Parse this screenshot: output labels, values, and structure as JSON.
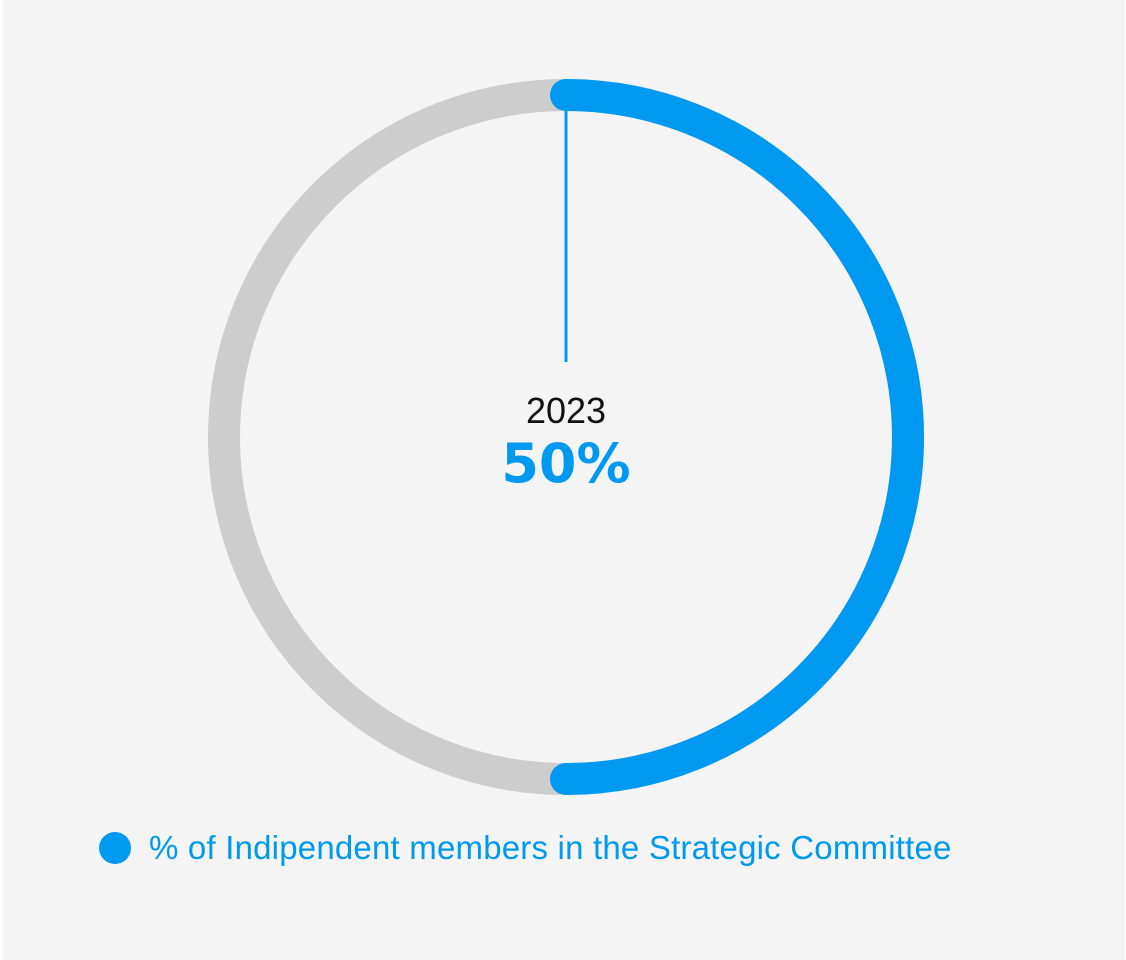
{
  "colors": {
    "accent": "#0099f2",
    "track": "#cdcdcd",
    "background": "#f4f4f4",
    "year_text": "#111111"
  },
  "chart_data": {
    "type": "pie",
    "subtype": "donut-progress",
    "center_labels": {
      "year": "2023",
      "value": "50%"
    },
    "series": [
      {
        "name": "% of Indipendent members in the Strategic Committee",
        "value": 50,
        "color": "#0099f2"
      }
    ],
    "remainder": {
      "value": 50,
      "color": "#cdcdcd"
    },
    "total": 100,
    "start": "top",
    "direction": "clockwise",
    "legend": "bottom"
  }
}
